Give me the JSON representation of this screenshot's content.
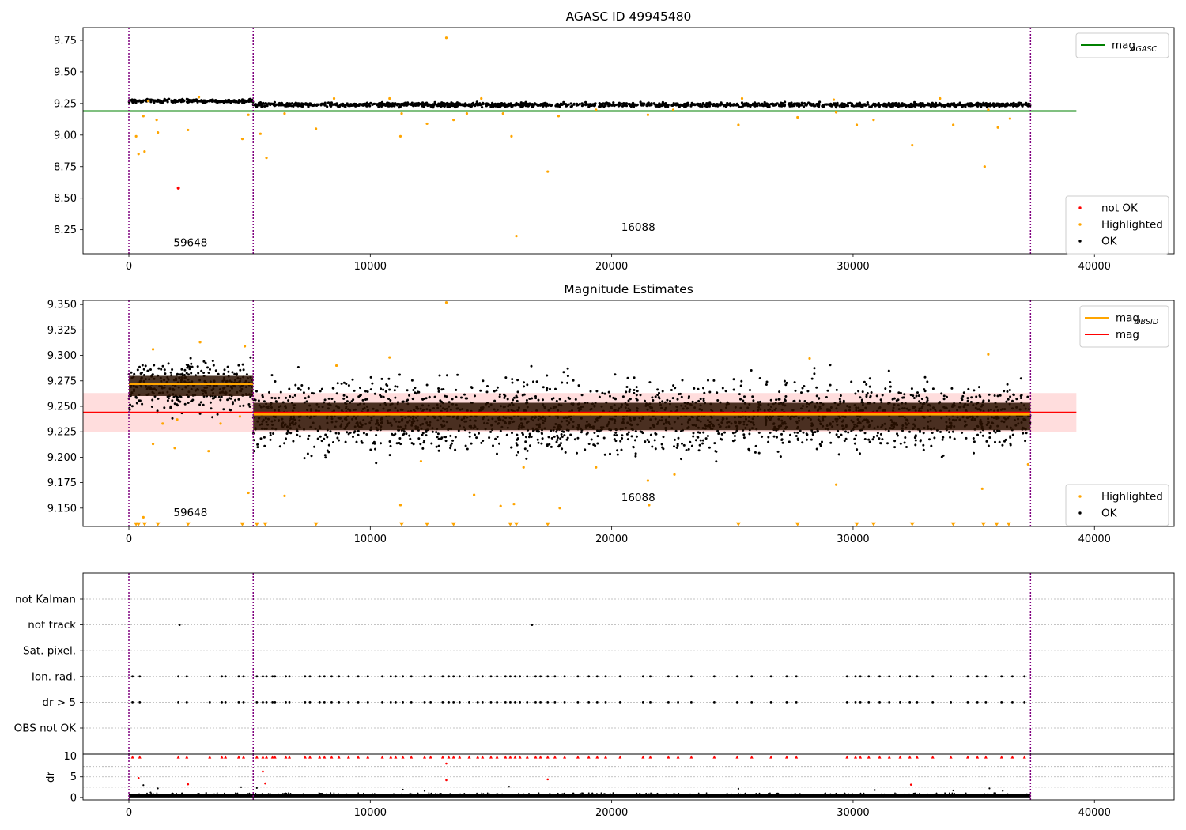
{
  "chart_data": [
    {
      "type": "scatter",
      "title": "AGASC ID 49945480",
      "xlim": [
        -1900,
        43300
      ],
      "ylim": [
        8.06,
        9.85
      ],
      "x_ticks": [
        0,
        10000,
        20000,
        30000,
        40000
      ],
      "x_tick_labels": [
        "0",
        "10000",
        "20000",
        "30000",
        "40000"
      ],
      "y_ticks": [
        8.25,
        8.5,
        8.75,
        9.0,
        9.25,
        9.5,
        9.75
      ],
      "y_tick_labels": [
        "8.25",
        "8.50",
        "8.75",
        "9.00",
        "9.25",
        "9.50",
        "9.75"
      ],
      "vlines": [
        0,
        5150,
        37350
      ],
      "obsid_labels": [
        {
          "text": "59648",
          "x": 2550,
          "y": 8.12
        },
        {
          "text": "16088",
          "x": 21100,
          "y": 8.24
        }
      ],
      "hlines": [
        {
          "name": "mag_AGASC",
          "y": 9.19,
          "x_range": [
            -1900,
            39250
          ],
          "color": "#008000"
        }
      ],
      "ok_band": {
        "color": "#000000",
        "segments": [
          {
            "x_range": [
              0,
              5150
            ],
            "y_center": 9.27,
            "y_halfwidth": 0.012
          },
          {
            "x_range": [
              5150,
              37350
            ],
            "y_center": 9.24,
            "y_halfwidth": 0.014
          }
        ]
      },
      "series": [
        {
          "name": "not OK",
          "color": "#ff0000",
          "points": [
            [
              2050,
              8.58
            ]
          ]
        },
        {
          "name": "Highlighted",
          "color": "#ffa500",
          "points": [
            [
              13150,
              9.77
            ],
            [
              16050,
              8.2
            ],
            [
              17350,
              8.71
            ],
            [
              35450,
              8.75
            ],
            [
              32450,
              8.92
            ],
            [
              15850,
              8.99
            ],
            [
              11250,
              8.99
            ],
            [
              400,
              8.85
            ],
            [
              650,
              8.87
            ],
            [
              300,
              8.99
            ],
            [
              600,
              9.15
            ],
            [
              1200,
              9.02
            ],
            [
              1150,
              9.12
            ],
            [
              2450,
              9.04
            ],
            [
              4700,
              8.97
            ],
            [
              5700,
              8.82
            ],
            [
              5450,
              9.01
            ],
            [
              4950,
              9.16
            ],
            [
              7750,
              9.05
            ],
            [
              12350,
              9.09
            ],
            [
              13450,
              9.12
            ],
            [
              19350,
              9.2
            ],
            [
              25250,
              9.08
            ],
            [
              27700,
              9.14
            ],
            [
              30150,
              9.08
            ],
            [
              30850,
              9.12
            ],
            [
              34150,
              9.08
            ],
            [
              36000,
              9.06
            ],
            [
              36500,
              9.13
            ],
            [
              35600,
              9.2
            ],
            [
              29300,
              9.18
            ],
            [
              21500,
              9.16
            ],
            [
              17800,
              9.15
            ],
            [
              22550,
              9.2
            ],
            [
              6450,
              9.17
            ],
            [
              15500,
              9.17
            ],
            [
              11300,
              9.17
            ],
            [
              14000,
              9.17
            ],
            [
              800,
              9.27
            ],
            [
              2900,
              9.3
            ],
            [
              8500,
              9.29
            ],
            [
              10800,
              9.29
            ],
            [
              25400,
              9.29
            ],
            [
              33600,
              9.29
            ],
            [
              29200,
              9.28
            ],
            [
              14600,
              9.29
            ]
          ]
        }
      ],
      "legends": [
        {
          "position": "upper-right",
          "entries": [
            {
              "label": "mag",
              "sub": "AGASC",
              "marker": "line",
              "color": "#008000"
            }
          ]
        },
        {
          "position": "lower-right",
          "entries": [
            {
              "label": "not OK",
              "marker": "dot",
              "color": "#ff0000"
            },
            {
              "label": "Highlighted",
              "marker": "dot",
              "color": "#ffa500"
            },
            {
              "label": "OK",
              "marker": "dot",
              "color": "#000000"
            }
          ]
        }
      ]
    },
    {
      "type": "scatter",
      "title": "Magnitude Estimates",
      "xlim": [
        -1900,
        43300
      ],
      "ylim": [
        9.132,
        9.354
      ],
      "x_ticks": [
        0,
        10000,
        20000,
        30000,
        40000
      ],
      "x_tick_labels": [
        "0",
        "10000",
        "20000",
        "30000",
        "40000"
      ],
      "y_ticks": [
        9.15,
        9.175,
        9.2,
        9.225,
        9.25,
        9.275,
        9.3,
        9.325,
        9.35
      ],
      "y_tick_labels": [
        "9.150",
        "9.175",
        "9.200",
        "9.225",
        "9.250",
        "9.275",
        "9.300",
        "9.325",
        "9.350"
      ],
      "vlines": [
        0,
        5150,
        37350
      ],
      "obsid_labels": [
        {
          "text": "59648",
          "x": 2550,
          "y": 9.142
        },
        {
          "text": "16088",
          "x": 21100,
          "y": 9.157
        }
      ],
      "shaded_band": {
        "y_range": [
          9.225,
          9.263
        ],
        "x_range": [
          -1900,
          39250
        ],
        "color": "#ffdddd"
      },
      "hlines": [
        {
          "name": "mag",
          "y": 9.244,
          "x_range": [
            -1900,
            39250
          ],
          "color": "#ff0000"
        },
        {
          "name": "mag_OBSID",
          "segments": [
            {
              "x_range": [
                0,
                5150
              ],
              "y": 9.272
            },
            {
              "x_range": [
                5150,
                37350
              ],
              "y": 9.242
            }
          ],
          "color": "#ffa500"
        }
      ],
      "ok_band": {
        "color": "#000000",
        "segments": [
          {
            "x_range": [
              0,
              5150
            ],
            "y_center": 9.27,
            "y_halfwidth": 0.022
          },
          {
            "x_range": [
              5150,
              37350
            ],
            "y_center": 9.24,
            "y_halfwidth": 0.03
          }
        ]
      },
      "clipped_marker_y": 9.133,
      "series": [
        {
          "name": "Highlighted",
          "color": "#ffa500",
          "points": [
            [
              13150,
              9.352
            ],
            [
              35600,
              9.301
            ],
            [
              2950,
              9.313
            ],
            [
              1000,
              9.306
            ],
            [
              4800,
              9.309
            ],
            [
              28200,
              9.297
            ],
            [
              10800,
              9.298
            ],
            [
              8600,
              9.29
            ],
            [
              600,
              9.141
            ],
            [
              4950,
              9.165
            ],
            [
              6450,
              9.162
            ],
            [
              11250,
              9.153
            ],
            [
              14300,
              9.163
            ],
            [
              15400,
              9.152
            ],
            [
              15950,
              9.154
            ],
            [
              16350,
              9.19
            ],
            [
              17850,
              9.15
            ],
            [
              19350,
              9.19
            ],
            [
              21500,
              9.177
            ],
            [
              21550,
              9.153
            ],
            [
              22600,
              9.183
            ],
            [
              29300,
              9.173
            ],
            [
              35350,
              9.169
            ],
            [
              37250,
              9.193
            ],
            [
              12100,
              9.196
            ],
            [
              3300,
              9.206
            ],
            [
              1900,
              9.209
            ],
            [
              1000,
              9.213
            ],
            [
              1400,
              9.233
            ],
            [
              2000,
              9.237
            ],
            [
              3800,
              9.233
            ],
            [
              4600,
              9.24
            ]
          ],
          "clipped_x": [
            300,
            400,
            650,
            1200,
            2450,
            4700,
            5300,
            5650,
            7750,
            11300,
            12350,
            13450,
            15800,
            16050,
            17350,
            25250,
            27700,
            30150,
            30850,
            32450,
            34150,
            35400,
            35950,
            36450
          ]
        }
      ],
      "legends": [
        {
          "position": "upper-right",
          "entries": [
            {
              "label": "mag",
              "sub": "OBSID",
              "marker": "line",
              "color": "#ffa500"
            },
            {
              "label": "mag",
              "marker": "line",
              "color": "#ff0000"
            }
          ]
        },
        {
          "position": "lower-right",
          "entries": [
            {
              "label": "Highlighted",
              "marker": "dot",
              "color": "#ffa500"
            },
            {
              "label": "OK",
              "marker": "dot",
              "color": "#000000"
            }
          ]
        }
      ]
    },
    {
      "type": "scatter",
      "title": "",
      "xlim": [
        -1900,
        43300
      ],
      "vlines": [
        0,
        5150,
        37350
      ],
      "categories": [
        "not Kalman",
        "not track",
        "Sat. pixel.",
        "Ion. rad.",
        "dr > 5",
        "OBS not OK"
      ],
      "flags": [
        {
          "category": "not track",
          "x": [
            2100,
            16700
          ]
        },
        {
          "category": "Ion. rad.",
          "x": [
            150,
            450,
            2050,
            2400,
            3350,
            3850,
            4000,
            4550,
            4750,
            5300,
            5550,
            5700,
            5950,
            6050,
            6500,
            6650,
            7300,
            7500,
            7900,
            8100,
            8400,
            8700,
            9100,
            9500,
            9900,
            10500,
            10850,
            11050,
            11350,
            11700,
            12250,
            12500,
            13000,
            13250,
            13450,
            13700,
            14100,
            14450,
            14650,
            15000,
            15250,
            15600,
            15800,
            16000,
            16200,
            16500,
            16850,
            17050,
            17350,
            17650,
            18050,
            18600,
            19050,
            19400,
            19750,
            20350,
            21300,
            21600,
            22350,
            22750,
            23300,
            24250,
            25200,
            25800,
            26600,
            27250,
            27650,
            29750,
            30100,
            30300,
            30650,
            31100,
            31500,
            31950,
            32350,
            32650,
            33300,
            34050,
            34750,
            35150,
            35500,
            36150,
            36600,
            37100
          ]
        },
        {
          "category": "dr > 5",
          "x": [
            150,
            450,
            2050,
            2400,
            3350,
            3850,
            4000,
            4550,
            4750,
            5300,
            5550,
            5700,
            5950,
            6050,
            6500,
            6650,
            7300,
            7500,
            7900,
            8100,
            8400,
            8700,
            9100,
            9500,
            9900,
            10500,
            10850,
            11050,
            11350,
            11700,
            12250,
            12500,
            13000,
            13250,
            13450,
            13700,
            14100,
            14450,
            14650,
            15000,
            15250,
            15600,
            15800,
            16000,
            16200,
            16500,
            16850,
            17050,
            17350,
            17650,
            18050,
            18600,
            19050,
            19400,
            19750,
            20350,
            21300,
            21600,
            22350,
            22750,
            23300,
            24250,
            25200,
            25800,
            26600,
            27250,
            27650,
            29750,
            30100,
            30300,
            30650,
            31100,
            31500,
            31950,
            32350,
            32650,
            33300,
            34050,
            34750,
            35150,
            35500,
            36150,
            36600,
            37100
          ]
        }
      ]
    },
    {
      "type": "scatter",
      "title": "",
      "ylabel": "dr",
      "xlim": [
        -1900,
        43300
      ],
      "ylim": [
        -0.6,
        10.5
      ],
      "x_ticks": [
        0,
        10000,
        20000,
        30000,
        40000
      ],
      "x_tick_labels": [
        "0",
        "10000",
        "20000",
        "30000",
        "40000"
      ],
      "y_ticks": [
        0,
        5,
        10
      ],
      "y_tick_labels": [
        "0",
        "5",
        "10"
      ],
      "vlines": [
        0,
        5150,
        37350
      ],
      "baseline": {
        "y_range": [
          0,
          0.8
        ],
        "x_range": [
          0,
          37350
        ],
        "color": "#000000"
      },
      "series": [
        {
          "name": "dr > 5",
          "color": "#ff0000",
          "y_clipped": 9.8,
          "x_clipped": [
            150,
            450,
            2050,
            2400,
            3350,
            3850,
            4000,
            4550,
            4750,
            5300,
            5550,
            5700,
            5950,
            6050,
            6500,
            6650,
            7300,
            7500,
            7900,
            8100,
            8400,
            8700,
            9100,
            9500,
            9900,
            10500,
            10850,
            11050,
            11350,
            11700,
            12250,
            12500,
            13000,
            13250,
            13450,
            13700,
            14100,
            14450,
            14650,
            15000,
            15250,
            15600,
            15800,
            16000,
            16200,
            16500,
            16850,
            17050,
            17350,
            17650,
            18050,
            18600,
            19050,
            19400,
            19750,
            20350,
            21300,
            21600,
            22350,
            22750,
            23300,
            24250,
            25200,
            25800,
            26600,
            27250,
            27650,
            29750,
            30100,
            30300,
            30650,
            31100,
            31500,
            31950,
            32350,
            32650,
            33300,
            34050,
            34750,
            35150,
            35500,
            36150,
            36600,
            37100
          ],
          "points": [
            [
              400,
              4.7
            ],
            [
              2450,
              3.2
            ],
            [
              5550,
              6.3
            ],
            [
              5650,
              3.4
            ],
            [
              13150,
              8.2
            ],
            [
              13150,
              4.2
            ],
            [
              17350,
              4.4
            ],
            [
              32400,
              3.1
            ]
          ]
        },
        {
          "name": "OK",
          "color": "#000000",
          "points": [
            [
              600,
              3.0
            ],
            [
              1200,
              2.2
            ],
            [
              4650,
              2.5
            ],
            [
              5300,
              2.3
            ],
            [
              11350,
              1.9
            ],
            [
              12250,
              1.6
            ],
            [
              15750,
              2.6
            ],
            [
              25250,
              2.1
            ],
            [
              30900,
              1.8
            ],
            [
              34150,
              1.7
            ],
            [
              35650,
              2.2
            ],
            [
              36200,
              1.6
            ],
            [
              900,
              1.2
            ],
            [
              2200,
              1.0
            ],
            [
              3200,
              1.1
            ],
            [
              8000,
              0.9
            ],
            [
              19200,
              1.0
            ],
            [
              27600,
              0.9
            ]
          ]
        }
      ]
    }
  ]
}
